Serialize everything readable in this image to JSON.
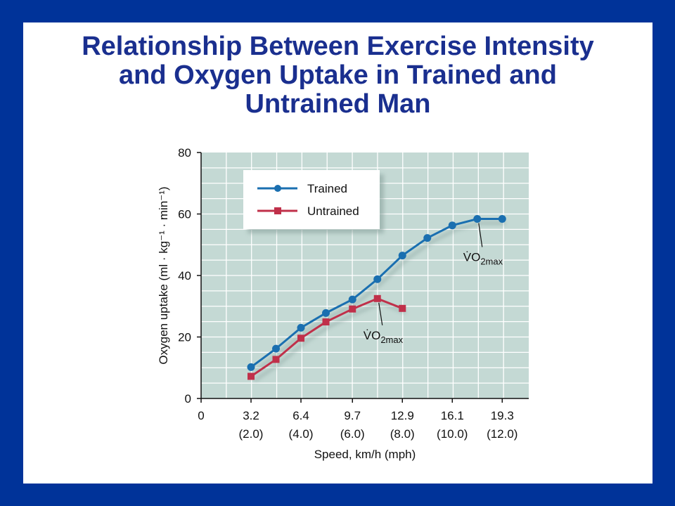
{
  "slide": {
    "title_lines": [
      "Relationship Between Exercise Intensity",
      "and Oxygen Uptake in Trained and",
      "Untrained Man"
    ]
  },
  "chart_data": {
    "type": "line",
    "xlabel": "Speed, km/h (mph)",
    "ylabel": "Oxygen uptake (ml · kg⁻¹ · min⁻¹)",
    "xlim": [
      0,
      21.0
    ],
    "ylim": [
      0,
      80
    ],
    "grid": true,
    "legend": "top-left",
    "x_ticks": [
      {
        "value": 0,
        "label": "0",
        "sub": ""
      },
      {
        "value": 3.2,
        "label": "3.2",
        "sub": "(2.0)"
      },
      {
        "value": 6.4,
        "label": "6.4",
        "sub": "(4.0)"
      },
      {
        "value": 9.7,
        "label": "9.7",
        "sub": "(6.0)"
      },
      {
        "value": 12.9,
        "label": "12.9",
        "sub": "(8.0)"
      },
      {
        "value": 16.1,
        "label": "16.1",
        "sub": "(10.0)"
      },
      {
        "value": 19.3,
        "label": "19.3",
        "sub": "(12.0)"
      }
    ],
    "y_ticks": [
      0,
      20,
      40,
      60,
      80
    ],
    "series": [
      {
        "name": "Trained",
        "color": "#1a6fb0",
        "marker": "circle",
        "x": [
          3.2,
          4.8,
          6.4,
          8.0,
          9.7,
          11.3,
          12.9,
          14.5,
          16.1,
          17.7,
          19.3
        ],
        "y": [
          10.2,
          16.2,
          23.0,
          27.8,
          32.2,
          38.8,
          46.5,
          52.2,
          56.3,
          58.4,
          58.4
        ]
      },
      {
        "name": "Untrained",
        "color": "#c0304a",
        "marker": "square",
        "x": [
          3.2,
          4.8,
          6.4,
          8.0,
          9.7,
          11.3,
          12.9
        ],
        "y": [
          7.2,
          12.7,
          19.6,
          24.9,
          29.1,
          32.5,
          29.3
        ]
      }
    ],
    "annotations": [
      {
        "text_main": "V̇O",
        "text_sub": "2max",
        "series": "Trained",
        "point_index": 9
      },
      {
        "text_main": "V̇O",
        "text_sub": "2max",
        "series": "Untrained",
        "point_index": 5
      }
    ],
    "colors": {
      "plot_bg": "#c4d9d4",
      "grid": "#ffffff",
      "frame": "#003399",
      "title": "#1a2f8f"
    }
  }
}
